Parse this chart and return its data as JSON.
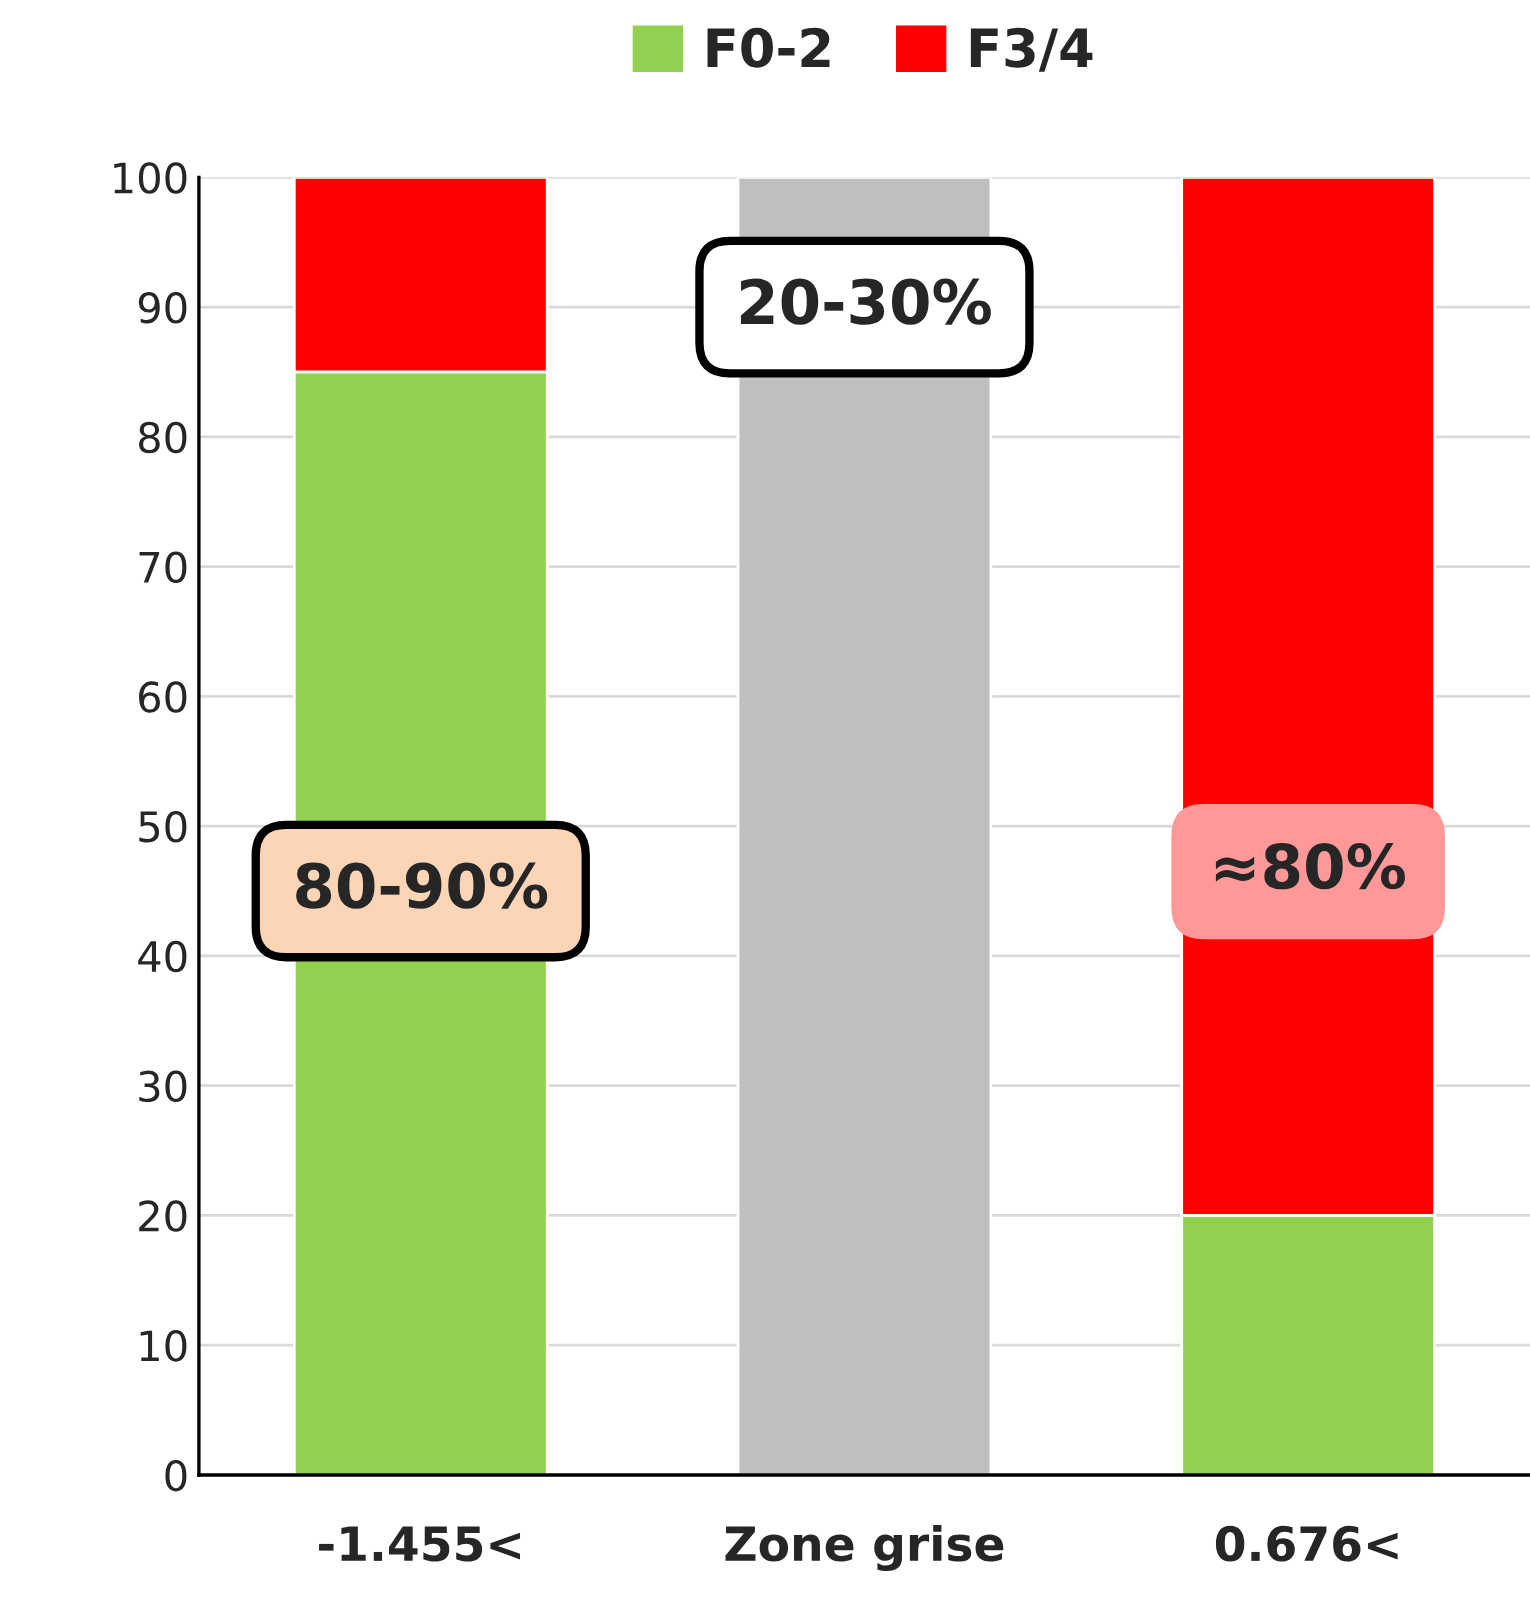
{
  "chart_data": {
    "type": "bar",
    "stacked": true,
    "categories": [
      "-1.455<",
      "Zone grise",
      "0.676<"
    ],
    "series": [
      {
        "name": "F0-2",
        "color": "#92d050",
        "values": [
          85,
          null,
          20
        ]
      },
      {
        "name": "F3/4",
        "color": "#ff0000",
        "values": [
          15,
          null,
          80
        ]
      },
      {
        "color": "#bfbfbf",
        "values": [
          null,
          100,
          null
        ]
      }
    ],
    "ylim": [
      0,
      100
    ],
    "yticks": [
      0,
      10,
      20,
      30,
      40,
      50,
      60,
      70,
      80,
      90,
      100
    ],
    "grid": "y",
    "legend": "top",
    "annotations": [
      "80-90%",
      "20-30%",
      "≈80%"
    ]
  }
}
